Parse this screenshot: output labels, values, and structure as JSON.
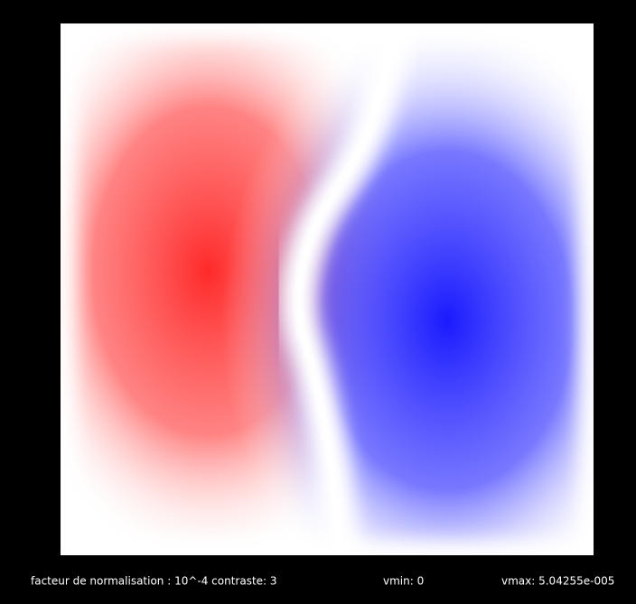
{
  "footer": {
    "normalization": "facteur de normalisation : 10^-4  contraste: 3",
    "vmin": "vmin: 0",
    "vmax": "vmax: 5.04255e-005"
  }
}
